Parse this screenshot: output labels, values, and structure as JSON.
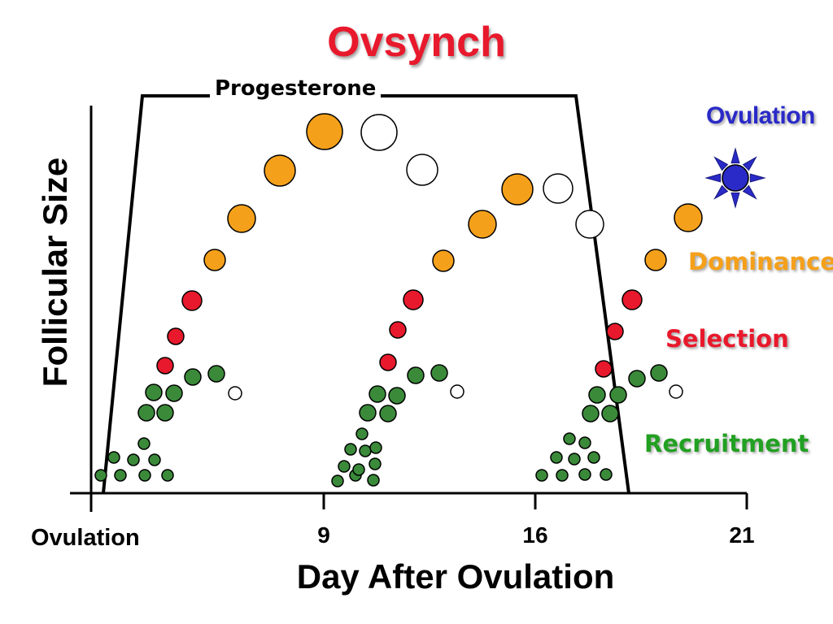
{
  "title": "Ovsynch",
  "progesterone_label": "Progesterone",
  "axes": {
    "y_label": "Follicular Size",
    "x_label": "Day After Ovulation",
    "x_ticks": [
      "Ovulation",
      "9",
      "16",
      "21"
    ]
  },
  "stages": {
    "ovulation": "Ovulation",
    "dominance": "Dominance",
    "selection": "Selection",
    "recruitment": "Recruitment"
  },
  "colors": {
    "title": "#e8192c",
    "recruitment": "#3a8a3a",
    "selection": "#e8192c",
    "dominance": "#f5a01a",
    "ovulation": "#2a2ac8",
    "atretic": "#ffffff",
    "recruitment_label": "#22a022",
    "selection_label": "#e8192c",
    "dominance_label": "#f5a01a",
    "ovulation_label": "#2a2ac8"
  }
}
